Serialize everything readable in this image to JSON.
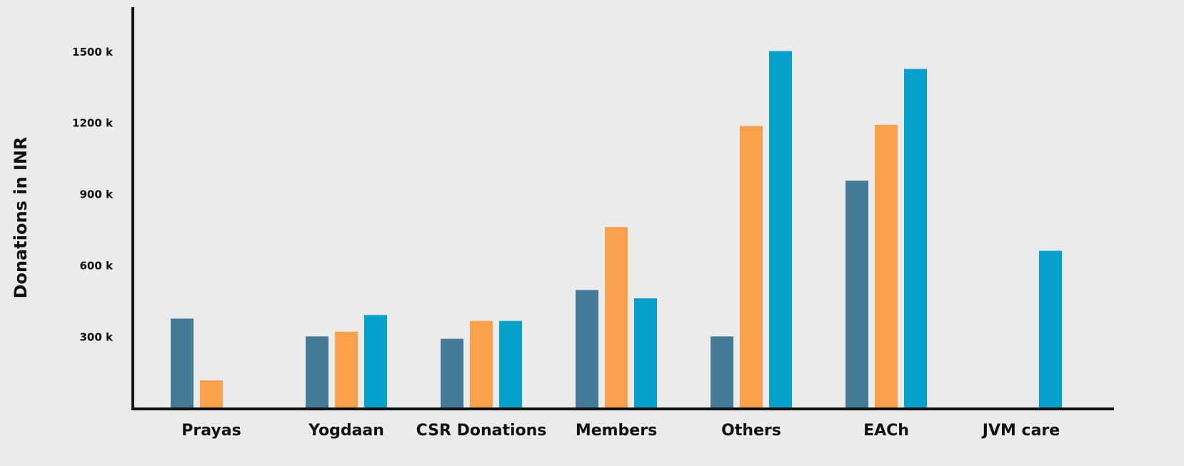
{
  "chart_data": {
    "type": "bar",
    "y_label": "Donations in INR",
    "categories": [
      "Prayas",
      "Yogdaan",
      "CSR Donations",
      "Members",
      "Others",
      "EACh",
      "JVM care"
    ],
    "series": [
      {
        "color": "#457b96",
        "values": [
          380,
          305,
          295,
          500,
          305,
          960,
          null
        ]
      },
      {
        "color": "#f9a04a",
        "values": [
          120,
          325,
          370,
          765,
          1190,
          1195,
          null
        ]
      },
      {
        "color": "#05a0cb",
        "values": [
          null,
          395,
          370,
          465,
          1505,
          1430,
          665
        ]
      }
    ],
    "ylim": [
      0,
      1690
    ],
    "yticks": [
      {
        "value": 300,
        "label": "300 k"
      },
      {
        "value": 600,
        "label": "600 k"
      },
      {
        "value": 900,
        "label": "900 k"
      },
      {
        "value": 1200,
        "label": "1200 k"
      },
      {
        "value": 1500,
        "label": "1500 k"
      }
    ],
    "grid": false
  }
}
